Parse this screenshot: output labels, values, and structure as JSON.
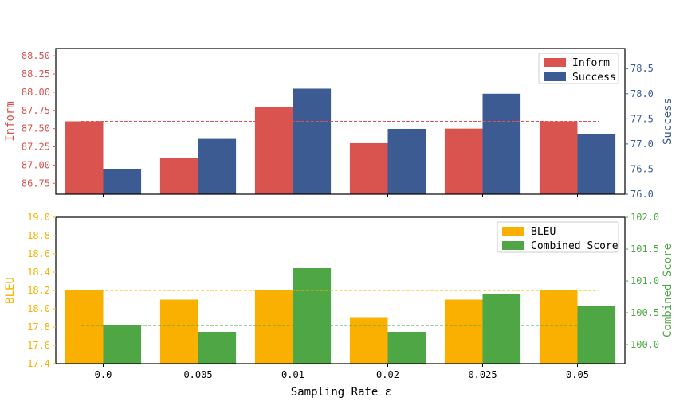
{
  "colors": {
    "inform": "#d9534f",
    "success": "#3b5b92",
    "bleu": "#f9b000",
    "combined": "#4ea645",
    "inform_axis": "#d9534f",
    "success_axis": "#3b5b92",
    "bleu_axis": "#f9b000",
    "combined_axis": "#4ea645"
  },
  "chart_data": [
    {
      "type": "bar",
      "categories": [
        "0.0",
        "0.005",
        "0.01",
        "0.02",
        "0.025",
        "0.05"
      ],
      "xlabel": "Sampling Rate ε",
      "series": [
        {
          "name": "Inform",
          "axis": "left",
          "values": [
            87.6,
            87.1,
            87.8,
            87.3,
            87.5,
            87.6
          ]
        },
        {
          "name": "Success",
          "axis": "right",
          "values": [
            76.5,
            77.1,
            78.1,
            77.3,
            78.0,
            77.2
          ]
        }
      ],
      "left_axis": {
        "label": "Inform",
        "ylim": [
          86.6,
          88.6
        ],
        "ticks": [
          86.75,
          87.0,
          87.25,
          87.5,
          87.75,
          88.0,
          88.25,
          88.5
        ],
        "tick_labels": [
          "86.75",
          "87.00",
          "87.25",
          "87.50",
          "87.75",
          "88.00",
          "88.25",
          "88.50"
        ]
      },
      "right_axis": {
        "label": "Success",
        "ylim": [
          76.0,
          78.9
        ],
        "ticks": [
          76.0,
          76.5,
          77.0,
          77.5,
          78.0,
          78.5
        ],
        "tick_labels": [
          "76.0",
          "76.5",
          "77.0",
          "77.5",
          "78.0",
          "78.5"
        ]
      },
      "reference_lines": [
        {
          "axis": "left",
          "value": 87.6,
          "series": "Inform"
        },
        {
          "axis": "right",
          "value": 76.5,
          "series": "Success"
        }
      ],
      "legend": [
        "Inform",
        "Success"
      ],
      "legend_position": "top-right"
    },
    {
      "type": "bar",
      "categories": [
        "0.0",
        "0.005",
        "0.01",
        "0.02",
        "0.025",
        "0.05"
      ],
      "xlabel": "Sampling Rate ε",
      "series": [
        {
          "name": "BLEU",
          "axis": "left",
          "values": [
            18.2,
            18.1,
            18.2,
            17.9,
            18.1,
            18.2
          ]
        },
        {
          "name": "Combined Score",
          "axis": "right",
          "values": [
            100.3,
            100.2,
            101.2,
            100.2,
            100.8,
            100.6
          ]
        }
      ],
      "left_axis": {
        "label": "BLEU",
        "ylim": [
          17.4,
          19.0
        ],
        "ticks": [
          17.4,
          17.6,
          17.8,
          18.0,
          18.2,
          18.4,
          18.6,
          18.8,
          19.0
        ],
        "tick_labels": [
          "17.4",
          "17.6",
          "17.8",
          "18.0",
          "18.2",
          "18.4",
          "18.6",
          "18.8",
          "19.0"
        ]
      },
      "right_axis": {
        "label": "Combined Score",
        "ylim": [
          99.7,
          102.0
        ],
        "ticks": [
          100.0,
          100.5,
          101.0,
          101.5,
          102.0
        ],
        "tick_labels": [
          "100.0",
          "100.5",
          "101.0",
          "101.5",
          "102.0"
        ]
      },
      "reference_lines": [
        {
          "axis": "left",
          "value": 18.2,
          "series": "BLEU"
        },
        {
          "axis": "right",
          "value": 100.3,
          "series": "Combined Score"
        }
      ],
      "legend": [
        "BLEU",
        "Combined Score"
      ],
      "legend_position": "top-right"
    }
  ]
}
